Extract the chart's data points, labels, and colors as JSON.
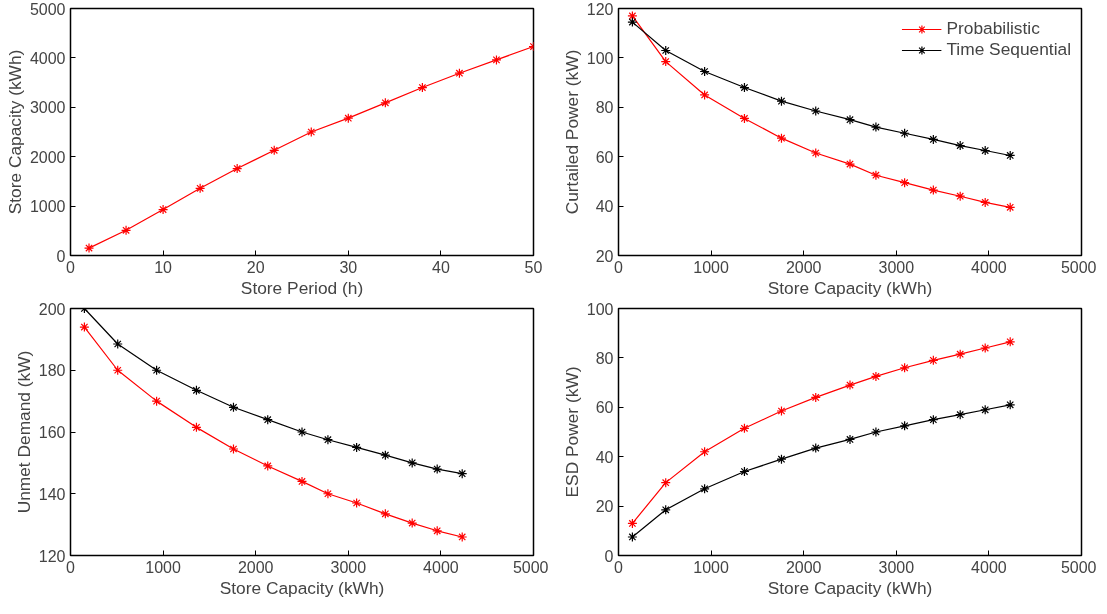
{
  "chart_data": [
    {
      "type": "line",
      "xlabel": "Store Period (h)",
      "ylabel": "Store Capacity (kWh)",
      "x": [
        2,
        6,
        10,
        14,
        18,
        22,
        26,
        30,
        34,
        38,
        42,
        46,
        50
      ],
      "xlim": [
        0,
        50
      ],
      "xticks": [
        0,
        10,
        20,
        30,
        40,
        50
      ],
      "ylim": [
        0,
        5000
      ],
      "yticks": [
        0,
        1000,
        2000,
        3000,
        4000,
        5000
      ],
      "marker": "cross",
      "grid": false,
      "legend": false,
      "series": [
        {
          "color": "#ff0000",
          "values": [
            150,
            510,
            930,
            1360,
            1760,
            2130,
            2500,
            2780,
            3090,
            3400,
            3690,
            3960,
            4230
          ]
        }
      ]
    },
    {
      "type": "line",
      "xlabel": "Store Capacity (kWh)",
      "ylabel": "Curtailed Power (kW)",
      "x": [
        150,
        510,
        930,
        1360,
        1760,
        2130,
        2500,
        2780,
        3090,
        3400,
        3690,
        3960,
        4230
      ],
      "xlim": [
        0,
        5000
      ],
      "xticks": [
        0,
        1000,
        2000,
        3000,
        4000,
        5000
      ],
      "ylim": [
        20,
        120
      ],
      "yticks": [
        20,
        40,
        60,
        80,
        100,
        120
      ],
      "marker": "cross",
      "grid": false,
      "legend": "top right",
      "series": [
        {
          "name": "Probabilistic",
          "color": "#ff0000",
          "values": [
            117,
            98.5,
            85,
            75.5,
            67.5,
            61.5,
            57,
            52.5,
            49.5,
            46.5,
            44,
            41.5,
            39.5
          ]
        },
        {
          "name": "Time Sequential",
          "color": "#000000",
          "values": [
            114.5,
            103,
            94.5,
            88,
            82.5,
            78.5,
            75,
            72,
            69.5,
            67,
            64.5,
            62.5,
            60.5
          ]
        }
      ]
    },
    {
      "type": "line",
      "xlabel": "Store Capacity (kWh)",
      "ylabel": "Unmet Demand (kW)",
      "x": [
        150,
        510,
        930,
        1360,
        1760,
        2130,
        2500,
        2780,
        3090,
        3400,
        3690,
        3960,
        4230
      ],
      "xlim": [
        0,
        5000
      ],
      "xticks": [
        0,
        1000,
        2000,
        3000,
        4000,
        5000
      ],
      "ylim": [
        120,
        200
      ],
      "yticks": [
        120,
        140,
        160,
        180,
        200
      ],
      "marker": "cross",
      "grid": false,
      "legend": false,
      "series": [
        {
          "color": "#ff0000",
          "values": [
            194,
            180,
            170,
            161.5,
            154.5,
            149,
            144,
            140,
            137,
            133.5,
            130.5,
            128,
            126
          ]
        },
        {
          "color": "#000000",
          "values": [
            200,
            188.5,
            180,
            173.5,
            168,
            164,
            160,
            157.5,
            155,
            152.5,
            150,
            148,
            146.5
          ]
        }
      ]
    },
    {
      "type": "line",
      "xlabel": "Store Capacity (kWh)",
      "ylabel": "ESD Power (kW)",
      "x": [
        150,
        510,
        930,
        1360,
        1760,
        2130,
        2500,
        2780,
        3090,
        3400,
        3690,
        3960,
        4230
      ],
      "xlim": [
        0,
        5000
      ],
      "xticks": [
        0,
        1000,
        2000,
        3000,
        4000,
        5000
      ],
      "ylim": [
        0,
        100
      ],
      "yticks": [
        0,
        20,
        40,
        60,
        80,
        100
      ],
      "marker": "cross",
      "grid": false,
      "legend": false,
      "series": [
        {
          "color": "#ff0000",
          "values": [
            13,
            29.5,
            42,
            51.5,
            58.5,
            64,
            69,
            72.5,
            76,
            79,
            81.5,
            84,
            86.5
          ]
        },
        {
          "color": "#000000",
          "values": [
            7.5,
            18.5,
            27,
            34,
            39,
            43.5,
            47,
            50,
            52.5,
            55,
            57,
            59,
            61
          ]
        }
      ]
    }
  ]
}
